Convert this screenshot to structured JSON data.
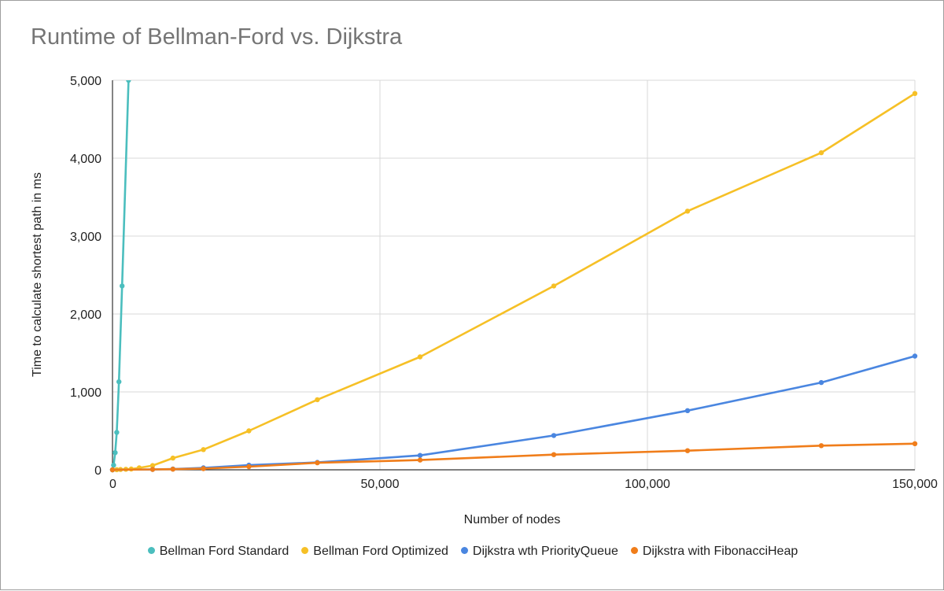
{
  "chart_data": {
    "type": "line",
    "title": "Runtime of Bellman-Ford vs. Dijkstra",
    "xlabel": "Number of nodes",
    "ylabel": "Time to calculate shortest path in ms",
    "xlim": [
      0,
      150000
    ],
    "ylim": [
      0,
      5000
    ],
    "x_ticks": [
      0,
      50000,
      100000,
      150000
    ],
    "x_tick_labels": [
      "0",
      "50,000",
      "100,000",
      "150,000"
    ],
    "y_ticks": [
      0,
      1000,
      2000,
      3000,
      4000,
      5000
    ],
    "y_tick_labels": [
      "0",
      "1,000",
      "2,000",
      "3,000",
      "4,000",
      "5,000"
    ],
    "grid": true,
    "legend_position": "bottom",
    "series": [
      {
        "name": "Bellman Ford Standard",
        "color": "#4bbebe",
        "x": [
          0,
          200,
          500,
          800,
          1200,
          1800,
          3000
        ],
        "y": [
          0,
          60,
          220,
          480,
          1130,
          2360,
          5000
        ]
      },
      {
        "name": "Bellman Ford Optimized",
        "color": "#f6c026",
        "x": [
          0,
          800,
          1500,
          2500,
          3500,
          5000,
          7500,
          11300,
          17000,
          25500,
          38300,
          57500,
          82500,
          107500,
          132500,
          150000
        ],
        "y": [
          0,
          2,
          4,
          7,
          10,
          25,
          55,
          150,
          260,
          500,
          900,
          1450,
          2360,
          3320,
          4070,
          4830
        ]
      },
      {
        "name": "Dijkstra wth PriorityQueue",
        "color": "#4a86e0",
        "x": [
          0,
          7500,
          11300,
          17000,
          25500,
          38300,
          57500,
          82500,
          107500,
          132500,
          150000
        ],
        "y": [
          0,
          5,
          10,
          25,
          60,
          95,
          185,
          440,
          760,
          1120,
          1460
        ]
      },
      {
        "name": "Dijkstra with FibonacciHeap",
        "color": "#f07d1a",
        "x": [
          0,
          7500,
          11300,
          17000,
          25500,
          38300,
          57500,
          82500,
          107500,
          132500,
          150000
        ],
        "y": [
          0,
          5,
          8,
          15,
          40,
          90,
          125,
          195,
          245,
          310,
          335
        ]
      }
    ]
  }
}
